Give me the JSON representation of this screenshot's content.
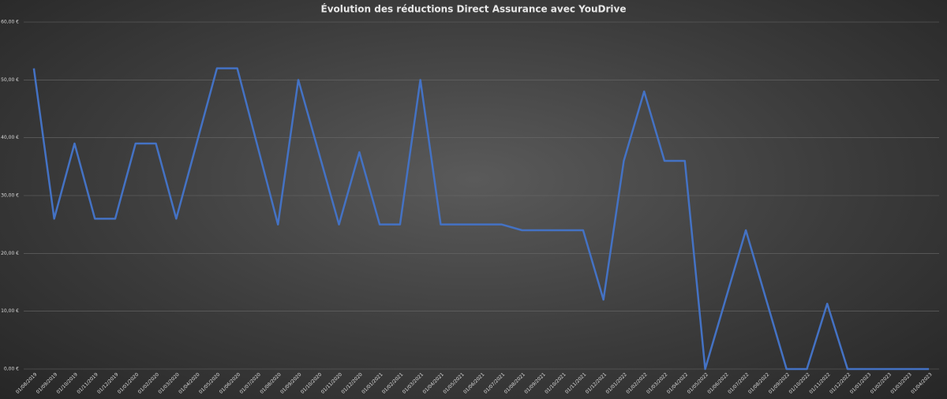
{
  "chart_data": {
    "type": "line",
    "title": "Évolution des réductions Direct Assurance avec YouDrive",
    "categories": [
      "01/08/2019",
      "01/09/2019",
      "01/10/2019",
      "01/11/2019",
      "01/12/2019",
      "01/01/2020",
      "01/02/2020",
      "01/03/2020",
      "01/04/2020",
      "01/05/2020",
      "01/06/2020",
      "01/07/2020",
      "01/08/2020",
      "01/09/2020",
      "01/10/2020",
      "01/11/2020",
      "01/12/2020",
      "01/01/2021",
      "01/02/2021",
      "01/03/2021",
      "01/04/2021",
      "01/05/2021",
      "01/06/2021",
      "01/07/2021",
      "01/08/2021",
      "01/09/2021",
      "01/10/2021",
      "01/11/2021",
      "01/12/2021",
      "01/01/2022",
      "01/02/2022",
      "01/03/2022",
      "01/04/2022",
      "01/05/2022",
      "01/06/2022",
      "01/07/2022",
      "01/08/2022",
      "01/09/2022",
      "01/10/2022",
      "01/11/2022",
      "01/12/2022",
      "01/01/2023",
      "01/02/2023",
      "01/03/2023",
      "01/04/2023"
    ],
    "values": [
      52,
      26,
      39,
      26,
      26,
      39,
      39,
      26,
      39,
      52,
      52,
      38.5,
      25,
      50,
      37.5,
      25,
      37.5,
      25,
      25,
      50,
      25,
      25,
      25,
      25,
      24,
      24,
      24,
      24,
      12,
      36,
      48,
      36,
      36,
      0,
      12,
      24,
      12,
      0,
      0,
      11.3,
      0,
      0,
      0,
      0,
      0
    ],
    "color": "#4472c4",
    "ylim": [
      0,
      60
    ],
    "yticks": [
      {
        "value": 0,
        "label": "0,00 €"
      },
      {
        "value": 10,
        "label": "10,00 €"
      },
      {
        "value": 20,
        "label": "20,00 €"
      },
      {
        "value": 30,
        "label": "30,00 €"
      },
      {
        "value": 40,
        "label": "40,00 €"
      },
      {
        "value": 50,
        "label": "50,00 €"
      },
      {
        "value": 60,
        "label": "60,00 €"
      }
    ],
    "grid": true
  }
}
